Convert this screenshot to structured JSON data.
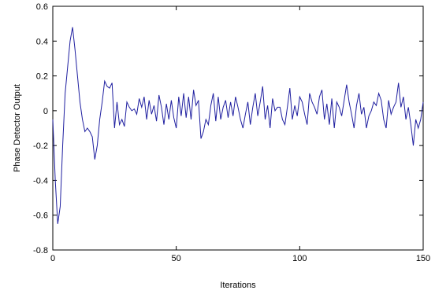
{
  "chart_data": {
    "type": "line",
    "xlabel": "Iterations",
    "ylabel": "Phase Detector Output",
    "x": [
      0,
      1,
      2,
      3,
      4,
      5,
      6,
      7,
      8,
      9,
      10,
      11,
      12,
      13,
      14,
      15,
      16,
      17,
      18,
      19,
      20,
      21,
      22,
      23,
      24,
      25,
      26,
      27,
      28,
      29,
      30,
      31,
      32,
      33,
      34,
      35,
      36,
      37,
      38,
      39,
      40,
      41,
      42,
      43,
      44,
      45,
      46,
      47,
      48,
      49,
      50,
      51,
      52,
      53,
      54,
      55,
      56,
      57,
      58,
      59,
      60,
      61,
      62,
      63,
      64,
      65,
      66,
      67,
      68,
      69,
      70,
      71,
      72,
      73,
      74,
      75,
      76,
      77,
      78,
      79,
      80,
      81,
      82,
      83,
      84,
      85,
      86,
      87,
      88,
      89,
      90,
      91,
      92,
      93,
      94,
      95,
      96,
      97,
      98,
      99,
      100,
      101,
      102,
      103,
      104,
      105,
      106,
      107,
      108,
      109,
      110,
      111,
      112,
      113,
      114,
      115,
      116,
      117,
      118,
      119,
      120,
      121,
      122,
      123,
      124,
      125,
      126,
      127,
      128,
      129,
      130,
      131,
      132,
      133,
      134,
      135,
      136,
      137,
      138,
      139,
      140,
      141,
      142,
      143,
      144,
      145,
      146,
      147,
      148,
      149,
      150
    ],
    "series": [
      {
        "color": "#1f1fa0",
        "values": [
          -0.05,
          -0.4,
          -0.65,
          -0.55,
          -0.2,
          0.1,
          0.25,
          0.4,
          0.48,
          0.35,
          0.2,
          0.05,
          -0.05,
          -0.12,
          -0.1,
          -0.12,
          -0.15,
          -0.28,
          -0.2,
          -0.05,
          0.05,
          0.17,
          0.14,
          0.13,
          0.16,
          -0.1,
          0.05,
          -0.08,
          -0.05,
          -0.09,
          0.05,
          0.02,
          0.0,
          0.01,
          -0.02,
          0.07,
          0.02,
          0.08,
          -0.05,
          0.06,
          -0.02,
          0.03,
          -0.06,
          0.09,
          0.02,
          -0.08,
          0.04,
          -0.05,
          0.06,
          -0.04,
          -0.1,
          0.08,
          -0.03,
          0.1,
          -0.04,
          0.08,
          -0.05,
          0.12,
          0.03,
          0.06,
          -0.16,
          -0.12,
          -0.05,
          -0.08,
          0.03,
          0.1,
          -0.06,
          0.08,
          -0.05,
          0.02,
          0.06,
          -0.04,
          0.05,
          -0.03,
          0.08,
          0.02,
          -0.05,
          -0.1,
          -0.02,
          0.05,
          -0.08,
          0.02,
          0.1,
          -0.03,
          0.05,
          0.14,
          -0.05,
          0.03,
          -0.1,
          0.07,
          0.0,
          0.02,
          0.02,
          -0.05,
          -0.08,
          0.02,
          0.13,
          -0.05,
          0.03,
          -0.03,
          0.08,
          0.05,
          -0.02,
          -0.08,
          0.1,
          0.05,
          0.02,
          -0.02,
          0.08,
          0.12,
          -0.05,
          0.04,
          -0.08,
          0.07,
          -0.1,
          0.05,
          0.02,
          -0.03,
          0.06,
          0.15,
          0.05,
          -0.02,
          -0.1,
          0.03,
          0.1,
          -0.02,
          0.02,
          -0.1,
          -0.03,
          0.0,
          0.05,
          0.03,
          0.1,
          0.06,
          -0.05,
          -0.1,
          0.06,
          -0.02,
          0.02,
          0.05,
          0.16,
          0.02,
          0.08,
          -0.05,
          0.02,
          -0.08,
          -0.2,
          -0.05,
          -0.1,
          -0.05,
          0.05
        ]
      }
    ],
    "xlim": [
      0,
      150
    ],
    "xticks": [
      0,
      50,
      100,
      150
    ],
    "ylim": [
      -0.8,
      0.6
    ],
    "yticks": [
      -0.8,
      -0.6,
      -0.4,
      -0.2,
      0,
      0.2,
      0.4,
      0.6
    ],
    "grid": false
  }
}
